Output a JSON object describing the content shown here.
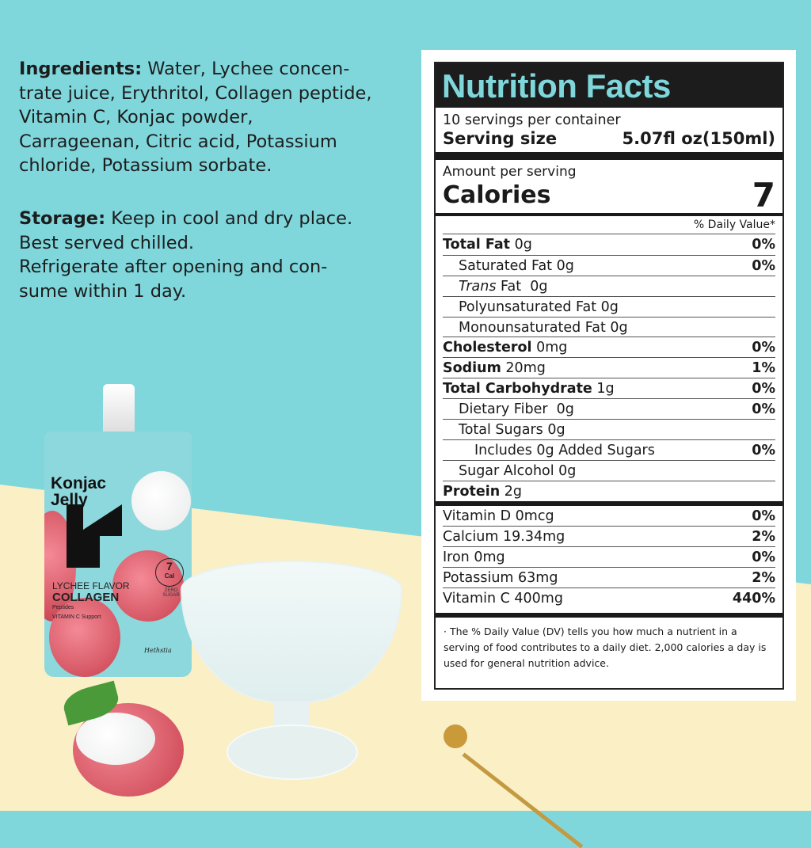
{
  "ingredients": {
    "label": "Ingredients:",
    "lines": [
      " Water, Lychee concen-",
      "trate juice, Erythritol, Collagen peptide,",
      "Vitamin C, Konjac powder,",
      "Carrageenan, Citric acid, Potassium",
      "chloride, Potassium sorbate."
    ]
  },
  "storage": {
    "label": "Storage:",
    "lines": [
      " Keep in cool and dry place.",
      "Best served chilled.",
      "Refrigerate after opening and con-",
      "sume within 1 day."
    ]
  },
  "product": {
    "brand_line1": "Konjac",
    "brand_line2": "Jelly",
    "flavor": "LYCHEE FLAVOR",
    "main": "COLLAGEN",
    "sub1": "Peptides",
    "sub2": "VITAMIN C Support",
    "badge_num": "7",
    "badge_unit": "Cal",
    "zero": "ZERO SUGAR",
    "maker": "Hethstia"
  },
  "nutrition": {
    "title": "Nutrition Facts",
    "servings": "10 servings per container",
    "serving_size_label": "Serving size",
    "serving_size_value": "5.07fl oz(150ml)",
    "amount_label": "Amount per serving",
    "calories_label": "Calories",
    "calories_value": "7",
    "dv_header": "% Daily Value*",
    "rows": [
      {
        "b": "Total Fat",
        "t": " 0g",
        "dv": "0%",
        "ind": 0
      },
      {
        "b": "",
        "t": "Saturated Fat 0g",
        "dv": "0%",
        "ind": 1
      },
      {
        "b": "",
        "i": "Trans",
        "t": " Fat  0g",
        "dv": "",
        "ind": 1
      },
      {
        "b": "",
        "t": "Polyunsaturated Fat 0g",
        "dv": "",
        "ind": 1
      },
      {
        "b": "",
        "t": "Monounsaturated Fat 0g",
        "dv": "",
        "ind": 1
      },
      {
        "b": "Cholesterol",
        "t": " 0mg",
        "dv": "0%",
        "ind": 0
      },
      {
        "b": "Sodium",
        "t": " 20mg",
        "dv": "1%",
        "ind": 0
      },
      {
        "b": "Total Carbohydrate",
        "t": " 1g",
        "dv": "0%",
        "ind": 0
      },
      {
        "b": "",
        "t": "Dietary Fiber  0g",
        "dv": "0%",
        "ind": 1
      },
      {
        "b": "",
        "t": "Total Sugars 0g",
        "dv": "",
        "ind": 1
      },
      {
        "b": "",
        "t": "Includes 0g Added Sugars",
        "dv": "0%",
        "ind": 2
      },
      {
        "b": "",
        "t": "Sugar Alcohol 0g",
        "dv": "",
        "ind": 1
      },
      {
        "b": "Protein",
        "t": " 2g",
        "dv": "",
        "ind": 0
      }
    ],
    "vitamins": [
      {
        "t": "Vitamin D 0mcg",
        "dv": "0%"
      },
      {
        "t": "Calcium 19.34mg",
        "dv": "2%"
      },
      {
        "t": "Iron 0mg",
        "dv": "0%"
      },
      {
        "t": "Potassium 63mg",
        "dv": "2%"
      },
      {
        "t": "Vitamin C 400mg",
        "dv": "440%"
      }
    ],
    "footnote": "· The % Daily Value  (DV) tells you how much a nutrient in a serving of food contributes to a daily diet.  2,000 calories a day is used for general nutrition advice."
  },
  "colors": {
    "teal_bg": "#7fd7dc",
    "yellow_bg": "#fbefc6",
    "title_text": "#7fd7dc"
  }
}
